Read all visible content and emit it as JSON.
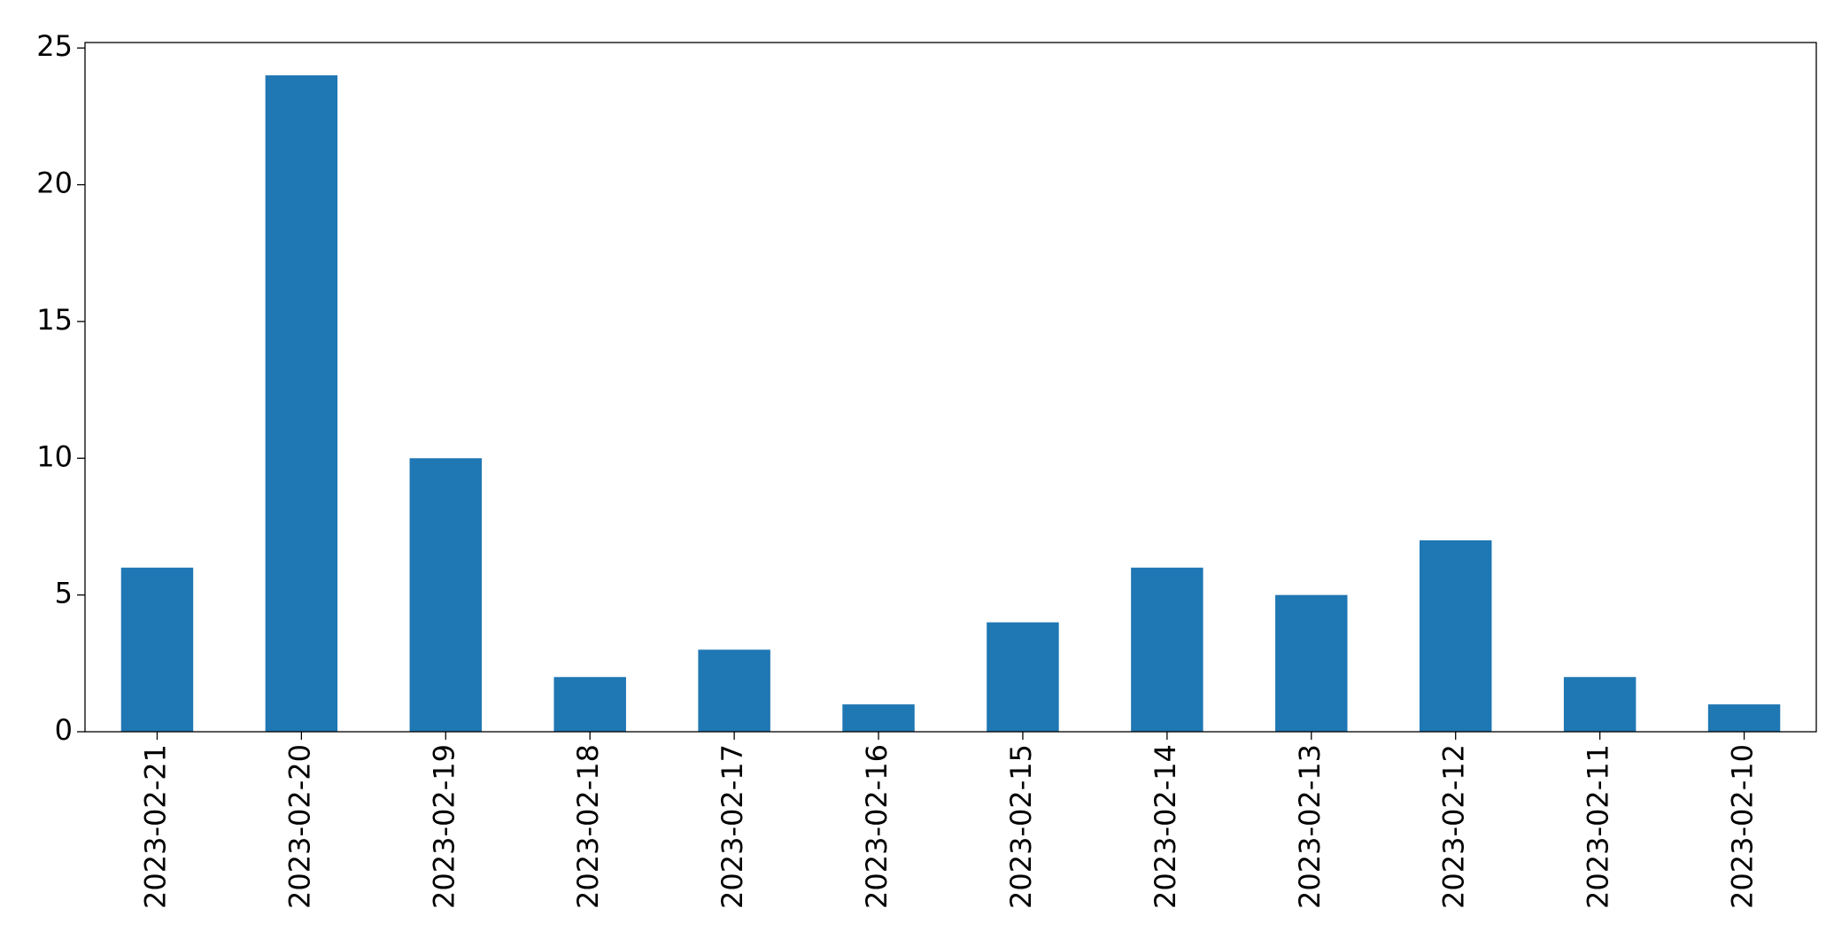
{
  "chart_data": {
    "type": "bar",
    "categories": [
      "2023-02-21",
      "2023-02-20",
      "2023-02-19",
      "2023-02-18",
      "2023-02-17",
      "2023-02-16",
      "2023-02-15",
      "2023-02-14",
      "2023-02-13",
      "2023-02-12",
      "2023-02-11",
      "2023-02-10"
    ],
    "values": [
      6,
      24,
      10,
      2,
      3,
      1,
      4,
      6,
      5,
      7,
      2,
      1
    ],
    "color": "#1f77b4",
    "ylim": [
      0,
      25.2
    ],
    "yticks": [
      0,
      5,
      10,
      15,
      20,
      25
    ],
    "grid": false
  }
}
